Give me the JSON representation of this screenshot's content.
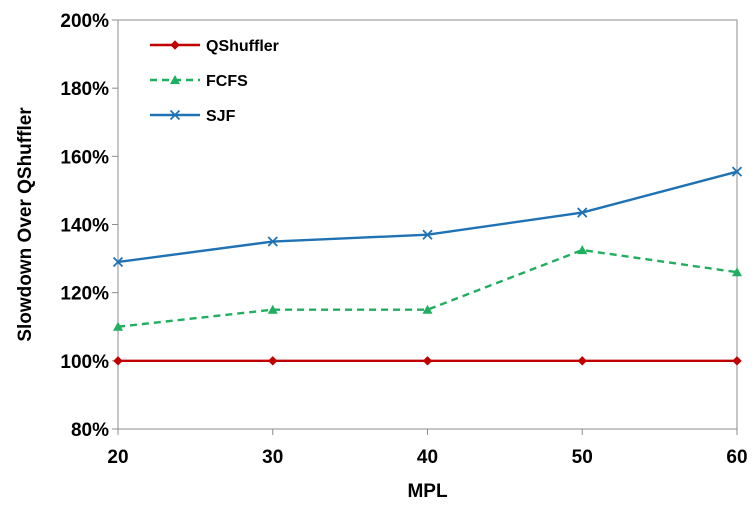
{
  "chart_data": {
    "type": "line",
    "title": "",
    "xlabel": "MPL",
    "ylabel": "Slowdown Over QShuffler",
    "x": [
      20,
      30,
      40,
      50,
      60
    ],
    "x_tick_labels": [
      "20",
      "30",
      "40",
      "50",
      "60"
    ],
    "xlim": [
      20,
      60
    ],
    "ylim": [
      80,
      200
    ],
    "y_ticks": [
      80,
      100,
      120,
      140,
      160,
      180,
      200
    ],
    "y_tick_labels": [
      "80%",
      "100%",
      "120%",
      "140%",
      "160%",
      "180%",
      "200%"
    ],
    "grid": false,
    "legend_position": "top-left",
    "series": [
      {
        "name": "QShuffler",
        "values": [
          100,
          100,
          100,
          100,
          100
        ],
        "color": "#C00000",
        "line_style": "solid",
        "marker": "diamond"
      },
      {
        "name": "FCFS",
        "values": [
          110,
          115,
          115,
          132.5,
          126
        ],
        "color": "#1FAF5F",
        "line_style": "dashed",
        "marker": "triangle"
      },
      {
        "name": "SJF",
        "values": [
          129,
          135,
          137,
          143.5,
          155.5
        ],
        "color": "#1F72B4",
        "line_style": "solid",
        "marker": "x"
      }
    ]
  }
}
